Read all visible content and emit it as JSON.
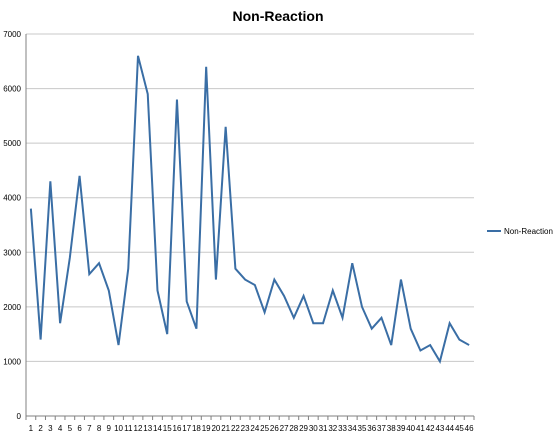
{
  "chart_data": {
    "type": "line",
    "title": "Non-Reaction",
    "xlabel": "",
    "ylabel": "",
    "categories": [
      "1",
      "2",
      "3",
      "4",
      "5",
      "6",
      "7",
      "8",
      "9",
      "10",
      "11",
      "12",
      "13",
      "14",
      "15",
      "16",
      "17",
      "18",
      "19",
      "20",
      "21",
      "22",
      "23",
      "24",
      "25",
      "26",
      "27",
      "28",
      "29",
      "30",
      "31",
      "32",
      "33",
      "34",
      "35",
      "36",
      "37",
      "38",
      "39",
      "40",
      "41",
      "42",
      "43",
      "44",
      "45",
      "46"
    ],
    "series": [
      {
        "name": "Non-Reaction",
        "values": [
          3800,
          1400,
          4300,
          1700,
          2900,
          4400,
          2600,
          2800,
          2300,
          1300,
          2700,
          6600,
          5900,
          2300,
          1500,
          5800,
          2100,
          1600,
          6400,
          2500,
          5300,
          2700,
          2500,
          2400,
          1900,
          2500,
          2200,
          1800,
          2200,
          1700,
          1700,
          2300,
          1800,
          2800,
          2000,
          1600,
          1800,
          1300,
          2500,
          1600,
          1200,
          1300,
          1000,
          1700,
          1400,
          1300
        ]
      }
    ],
    "ylim": [
      0,
      7000
    ],
    "yticks": [
      0,
      1000,
      2000,
      3000,
      4000,
      5000,
      6000,
      7000
    ],
    "grid": true,
    "legend": "right",
    "colors": {
      "line": "#3a6ea5",
      "grid": "#c8c8c8",
      "axis": "#808080"
    }
  }
}
